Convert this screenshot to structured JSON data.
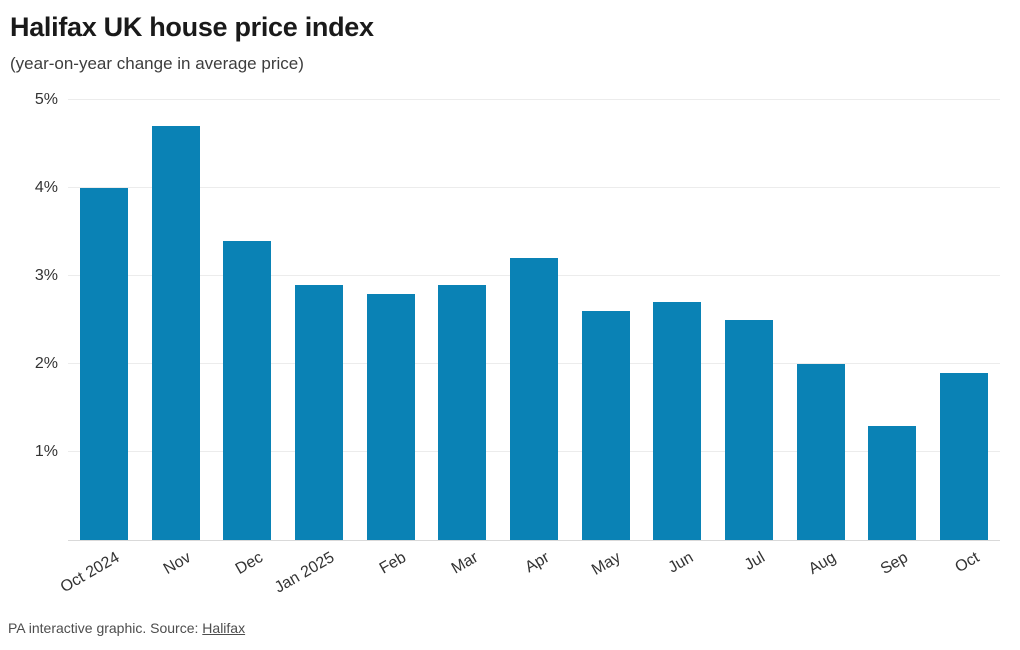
{
  "header": {
    "title": "Halifax UK house price index",
    "subtitle": "(year-on-year change in average price)"
  },
  "footer": {
    "credit": "PA interactive graphic. Source:",
    "source_link": "Halifax"
  },
  "colors": {
    "bar": "#0a82b5",
    "title_text": "#1a1a1a",
    "axis_text": "#333333",
    "gridline": "#ececec",
    "baseline": "#d9d9d9",
    "footer_text": "#4d4d4d"
  },
  "chart_data": {
    "type": "bar",
    "title": "Halifax UK house price index",
    "subtitle": "(year-on-year change in average price)",
    "categories": [
      "Oct 2024",
      "Nov",
      "Dec",
      "Jan 2025",
      "Feb",
      "Mar",
      "Apr",
      "May",
      "Jun",
      "Jul",
      "Aug",
      "Sep",
      "Oct"
    ],
    "values": [
      4.0,
      4.7,
      3.4,
      2.9,
      2.8,
      2.9,
      3.2,
      2.6,
      2.7,
      2.5,
      2.0,
      1.3,
      1.9
    ],
    "xlabel": "",
    "ylabel": "",
    "ylim": [
      0,
      5
    ],
    "yticks": [
      "1%",
      "2%",
      "3%",
      "4%",
      "5%"
    ],
    "grid": "horizontal",
    "legend": "none",
    "bar_color": "#0a82b5",
    "x_label_rotation_deg": -30
  }
}
